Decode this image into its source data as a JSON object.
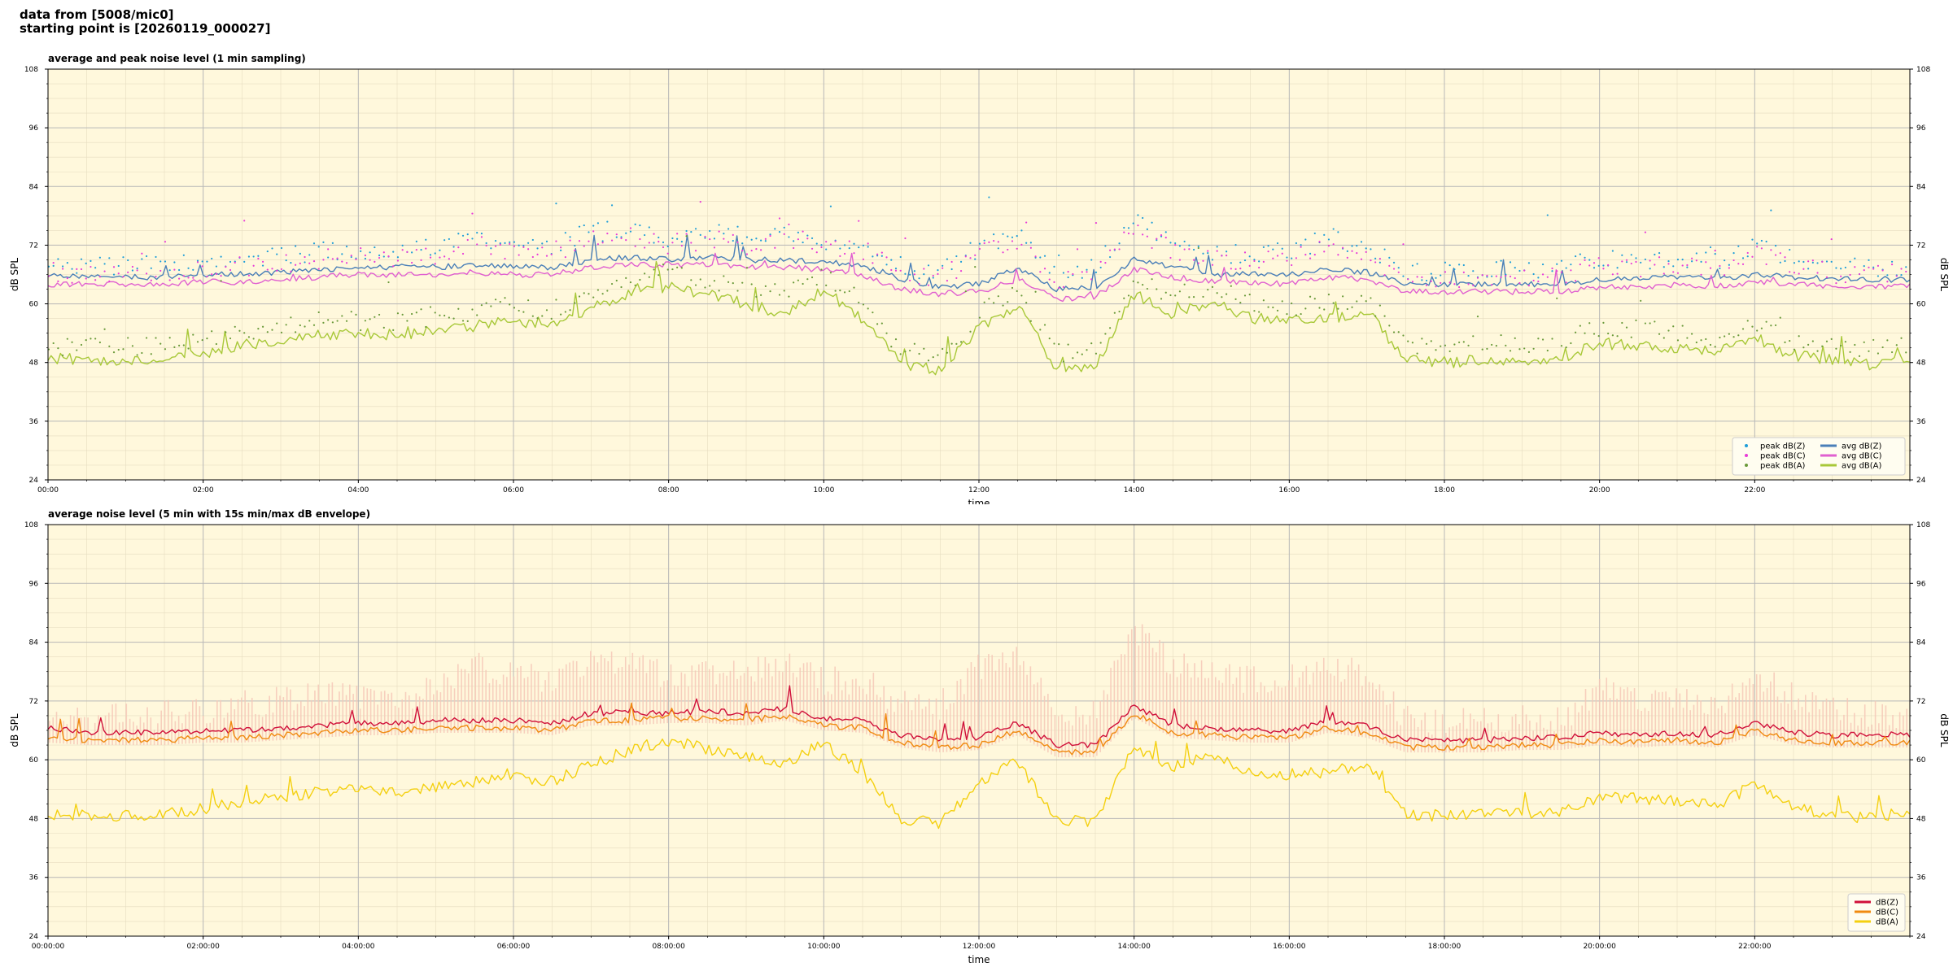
{
  "header": {
    "line1": "data from [5008/mic0]",
    "line2": "starting point is [20260119_000027]"
  },
  "colors": {
    "background": "#fff8dc",
    "peak_z": "#1f9ed8",
    "peak_c": "#e83cd8",
    "peak_a": "#6a9a3a",
    "avg_z": "#4a7fb8",
    "avg_c": "#e060d0",
    "avg_a": "#a8c838",
    "db_z": "#d0103a",
    "db_c": "#f08a10",
    "db_a": "#f4d010",
    "envelope": "#f6c8b8"
  },
  "chart_data": [
    {
      "type": "line",
      "title": "average and peak noise level (1 min sampling)",
      "xlabel": "time",
      "ylabel": "dB SPL",
      "ylim": [
        24,
        108
      ],
      "xlim_hours": [
        0,
        24
      ],
      "y_ticks": [
        "24",
        "36",
        "48",
        "60",
        "72",
        "84",
        "96",
        "108"
      ],
      "x_ticks": [
        "00:00",
        "02:00",
        "04:00",
        "06:00",
        "08:00",
        "10:00",
        "12:00",
        "14:00",
        "16:00",
        "18:00",
        "20:00",
        "22:00"
      ],
      "grid": true,
      "legend_position": "bottom-right",
      "legend": [
        {
          "label": "peak dB(Z)",
          "kind": "point",
          "color_key": "peak_z"
        },
        {
          "label": "peak dB(C)",
          "kind": "point",
          "color_key": "peak_c"
        },
        {
          "label": "peak dB(A)",
          "kind": "point",
          "color_key": "peak_a"
        },
        {
          "label": "avg dB(Z)",
          "kind": "line",
          "color_key": "avg_z"
        },
        {
          "label": "avg dB(C)",
          "kind": "line",
          "color_key": "avg_c"
        },
        {
          "label": "avg dB(A)",
          "kind": "line",
          "color_key": "avg_a"
        }
      ],
      "x_hours": [
        0,
        0.5,
        1,
        1.5,
        2,
        2.5,
        3,
        3.5,
        4,
        4.5,
        5,
        5.5,
        6,
        6.5,
        7,
        7.5,
        8,
        8.5,
        9,
        9.5,
        10,
        10.5,
        11,
        11.5,
        12,
        12.5,
        13,
        13.5,
        14,
        14.5,
        15,
        15.5,
        16,
        16.5,
        17,
        17.5,
        18,
        18.5,
        19,
        19.5,
        20,
        20.5,
        21,
        21.5,
        22,
        22.5,
        23,
        23.5,
        24
      ],
      "series": [
        {
          "name": "avg dB(Z)",
          "color_key": "avg_z",
          "style": "line",
          "values": [
            66,
            65.5,
            65.5,
            65.5,
            66,
            66,
            66.5,
            67,
            67.5,
            67.5,
            67.5,
            68,
            67.5,
            67.5,
            69,
            69.5,
            69,
            69.5,
            69,
            69,
            68.5,
            68,
            65,
            63.5,
            64,
            67.5,
            63,
            63.5,
            69,
            67.5,
            66,
            66,
            66,
            67,
            66.5,
            64,
            64,
            64,
            64,
            64,
            65,
            65,
            65.5,
            65,
            66,
            65.5,
            65,
            65,
            65
          ]
        },
        {
          "name": "avg dB(C)",
          "color_key": "avg_c",
          "style": "line",
          "values": [
            64,
            64,
            64,
            64,
            64.5,
            64.5,
            65,
            65.5,
            66,
            66,
            66,
            66.5,
            66,
            66,
            67.5,
            68,
            68,
            68,
            67.5,
            67.5,
            67,
            66,
            63,
            62,
            62.5,
            65,
            61,
            61.5,
            67,
            65.5,
            64.5,
            64.5,
            64,
            65.5,
            65,
            62.5,
            62.5,
            62.5,
            62.5,
            62.5,
            63.5,
            63.5,
            64,
            63.5,
            64.5,
            64,
            63.5,
            63.5,
            63.5
          ]
        },
        {
          "name": "avg dB(A)",
          "color_key": "avg_a",
          "style": "line",
          "values": [
            49,
            48.5,
            48.5,
            49,
            50,
            51.5,
            52.5,
            53.5,
            54,
            53.5,
            54.5,
            55.5,
            56.5,
            55.5,
            59,
            62,
            63.5,
            62,
            60,
            58,
            63,
            57,
            47.5,
            46.5,
            55,
            59.5,
            47,
            47.5,
            62,
            58,
            60.5,
            57,
            56.5,
            57,
            58.5,
            48.5,
            48,
            48.5,
            48.5,
            49,
            52,
            51.5,
            51,
            50,
            53,
            49.5,
            48.5,
            47.5,
            49
          ]
        },
        {
          "name": "peak dB(Z)",
          "color_key": "peak_z",
          "style": "points",
          "values": [
            68,
            67,
            67,
            67.5,
            68,
            68.5,
            69,
            70,
            70.5,
            70,
            71,
            73,
            71,
            71.5,
            74,
            74.5,
            73,
            74,
            73,
            74.5,
            72,
            72,
            67,
            66,
            71,
            74,
            66,
            67,
            76,
            72,
            70,
            69.5,
            70,
            73,
            71,
            66,
            66,
            66.5,
            66,
            66.5,
            69,
            68,
            69,
            68,
            71,
            69,
            67,
            67,
            67
          ]
        },
        {
          "name": "peak dB(C)",
          "color_key": "peak_c",
          "style": "points",
          "values": [
            66,
            65.5,
            65.5,
            66,
            66.5,
            67,
            67.5,
            68.5,
            69,
            68.5,
            69.5,
            71.5,
            69.5,
            70,
            72.5,
            73,
            71.5,
            72.5,
            71.5,
            73,
            70.5,
            70.5,
            65.5,
            64.5,
            69.5,
            72.5,
            64.5,
            65.5,
            74.5,
            70.5,
            68.5,
            68,
            68.5,
            71.5,
            69.5,
            64.5,
            64.5,
            65,
            64.5,
            65,
            67.5,
            66.5,
            67.5,
            66.5,
            69.5,
            67.5,
            65.5,
            65.5,
            65.5
          ]
        },
        {
          "name": "peak dB(A)",
          "color_key": "peak_a",
          "style": "points",
          "values": [
            51,
            50.5,
            50.5,
            51,
            52,
            53.5,
            54.5,
            56,
            56,
            55.5,
            57,
            58,
            59,
            58,
            62,
            64.5,
            66,
            64.5,
            63,
            61,
            65.5,
            60,
            50,
            49,
            57.5,
            62,
            49.5,
            50,
            64.5,
            61,
            63,
            59.5,
            59,
            59.5,
            61,
            51,
            50.5,
            51,
            51,
            51.5,
            54.5,
            54,
            53.5,
            52.5,
            55.5,
            52,
            51,
            50,
            51.5
          ]
        }
      ]
    },
    {
      "type": "line",
      "title": "average noise level (5 min with 15s min/max dB envelope)",
      "xlabel": "time",
      "ylabel": "dB SPL",
      "ylim": [
        24,
        108
      ],
      "xlim_hours": [
        0,
        24
      ],
      "y_ticks": [
        "24",
        "36",
        "48",
        "60",
        "72",
        "84",
        "96",
        "108"
      ],
      "x_ticks": [
        "00:00:00",
        "02:00:00",
        "04:00:00",
        "06:00:00",
        "08:00:00",
        "10:00:00",
        "12:00:00",
        "14:00:00",
        "16:00:00",
        "18:00:00",
        "20:00:00",
        "22:00:00"
      ],
      "grid": true,
      "legend_position": "bottom-right",
      "legend": [
        {
          "label": "dB(Z)",
          "kind": "line",
          "color_key": "db_z"
        },
        {
          "label": "dB(C)",
          "kind": "line",
          "color_key": "db_c"
        },
        {
          "label": "dB(A)",
          "kind": "line",
          "color_key": "db_a"
        }
      ],
      "x_hours": [
        0,
        0.5,
        1,
        1.5,
        2,
        2.5,
        3,
        3.5,
        4,
        4.5,
        5,
        5.5,
        6,
        6.5,
        7,
        7.5,
        8,
        8.5,
        9,
        9.5,
        10,
        10.5,
        11,
        11.5,
        12,
        12.5,
        13,
        13.5,
        14,
        14.5,
        15,
        15.5,
        16,
        16.5,
        17,
        17.5,
        18,
        18.5,
        19,
        19.5,
        20,
        20.5,
        21,
        21.5,
        22,
        22.5,
        23,
        23.5,
        24
      ],
      "envelope_max": [
        68,
        67,
        67.5,
        68,
        69,
        70,
        71,
        73,
        72,
        71,
        74,
        78,
        76,
        75,
        79,
        78,
        76,
        77,
        76,
        79,
        75,
        75,
        70,
        70,
        78,
        80,
        68,
        69,
        85,
        78,
        77,
        75,
        76,
        78,
        76,
        67,
        66,
        67,
        67,
        67,
        73,
        71,
        71,
        69,
        76,
        72,
        69,
        68,
        68
      ],
      "series": [
        {
          "name": "dB(Z)",
          "color_key": "db_z",
          "style": "line",
          "values": [
            66.5,
            65.5,
            65.5,
            65.5,
            66,
            66,
            66.5,
            67,
            67.5,
            67.5,
            68,
            68,
            68,
            67.5,
            69.5,
            69.5,
            69.5,
            70,
            69.5,
            70.5,
            68.5,
            68,
            65,
            64,
            64.5,
            67.5,
            63,
            63,
            71,
            67,
            66.5,
            66,
            66,
            68,
            67,
            64,
            64,
            64,
            64.5,
            64.5,
            65.5,
            65,
            65.5,
            65,
            67.5,
            65.5,
            65,
            65,
            65
          ]
        },
        {
          "name": "dB(C)",
          "color_key": "db_c",
          "style": "line",
          "values": [
            64.5,
            64,
            64,
            64,
            64.5,
            64.5,
            65,
            65.5,
            66,
            66,
            66.5,
            66.5,
            66.5,
            66,
            68,
            68,
            68.5,
            68.5,
            68,
            69,
            67,
            66.5,
            63.5,
            62.5,
            63,
            66,
            61.5,
            61.5,
            69.5,
            65.5,
            65,
            64.5,
            64.5,
            66.5,
            65.5,
            62.5,
            62.5,
            62.5,
            63,
            63,
            64,
            63.5,
            64,
            63.5,
            66,
            64,
            63.5,
            63.5,
            63.5
          ]
        },
        {
          "name": "dB(A)",
          "color_key": "db_a",
          "style": "line",
          "values": [
            49,
            48.5,
            48.5,
            49,
            50,
            51.5,
            52.5,
            53.5,
            54,
            53.5,
            54.5,
            55.5,
            56.5,
            55.5,
            59,
            62,
            64,
            62,
            60.5,
            59,
            63.5,
            57.5,
            48,
            47,
            55.5,
            60,
            47.5,
            47.5,
            62.5,
            58.5,
            61,
            57.5,
            57,
            57.5,
            59,
            49,
            48.5,
            49,
            49,
            49.5,
            52.5,
            52,
            51.5,
            50.5,
            55,
            50,
            49,
            48,
            49.5
          ]
        }
      ]
    }
  ]
}
